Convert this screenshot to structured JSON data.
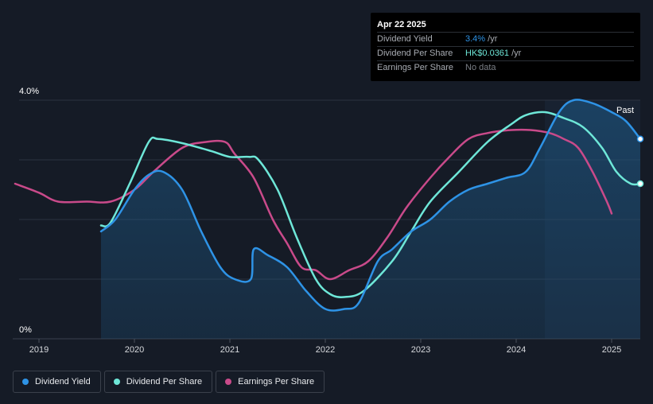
{
  "tooltip": {
    "date": "Apr 22 2025",
    "rows": [
      {
        "label": "Dividend Yield",
        "value": "3.4%",
        "unit": " /yr",
        "color": "#2e93e6"
      },
      {
        "label": "Dividend Per Share",
        "value": "HK$0.0361",
        "unit": " /yr",
        "color": "#6ee7d8"
      },
      {
        "label": "Earnings Per Share",
        "value": "No data",
        "unit": "",
        "color": "#7b7f86"
      }
    ]
  },
  "legend": [
    {
      "label": "Dividend Yield",
      "color": "#2e93e6"
    },
    {
      "label": "Dividend Per Share",
      "color": "#6ee7d8"
    },
    {
      "label": "Earnings Per Share",
      "color": "#c94a8a"
    }
  ],
  "chart_data": {
    "type": "line",
    "y_axis": {
      "min": 0,
      "max": 4.0,
      "unit": "%",
      "tick_labels": [
        "4.0%",
        "0%"
      ]
    },
    "x_axis": {
      "min": 2018.75,
      "max": 2025.3,
      "ticks": [
        2019,
        2020,
        2021,
        2022,
        2023,
        2024,
        2025
      ]
    },
    "past_label": "Past",
    "forecast_start": 2024.3,
    "grid": true,
    "series": [
      {
        "name": "Dividend Yield",
        "color": "#2e93e6",
        "fill": true,
        "points": [
          [
            2019.65,
            1.8
          ],
          [
            2019.8,
            2.0
          ],
          [
            2020.0,
            2.5
          ],
          [
            2020.15,
            2.75
          ],
          [
            2020.3,
            2.8
          ],
          [
            2020.5,
            2.5
          ],
          [
            2020.7,
            1.8
          ],
          [
            2020.9,
            1.2
          ],
          [
            2021.05,
            1.0
          ],
          [
            2021.22,
            1.0
          ],
          [
            2021.25,
            1.5
          ],
          [
            2021.4,
            1.4
          ],
          [
            2021.6,
            1.2
          ],
          [
            2021.8,
            0.8
          ],
          [
            2022.0,
            0.5
          ],
          [
            2022.2,
            0.5
          ],
          [
            2022.35,
            0.6
          ],
          [
            2022.55,
            1.3
          ],
          [
            2022.7,
            1.5
          ],
          [
            2022.9,
            1.8
          ],
          [
            2023.1,
            2.0
          ],
          [
            2023.3,
            2.3
          ],
          [
            2023.5,
            2.5
          ],
          [
            2023.7,
            2.6
          ],
          [
            2023.9,
            2.7
          ],
          [
            2024.1,
            2.8
          ],
          [
            2024.25,
            3.2
          ],
          [
            2024.45,
            3.8
          ],
          [
            2024.6,
            4.0
          ],
          [
            2024.8,
            3.95
          ],
          [
            2025.0,
            3.8
          ],
          [
            2025.15,
            3.65
          ],
          [
            2025.3,
            3.35
          ]
        ]
      },
      {
        "name": "Dividend Per Share",
        "color": "#6ee7d8",
        "fill": false,
        "points": [
          [
            2019.65,
            1.9
          ],
          [
            2019.75,
            1.95
          ],
          [
            2019.95,
            2.6
          ],
          [
            2020.15,
            3.3
          ],
          [
            2020.25,
            3.35
          ],
          [
            2020.5,
            3.28
          ],
          [
            2020.8,
            3.15
          ],
          [
            2021.0,
            3.05
          ],
          [
            2021.2,
            3.05
          ],
          [
            2021.3,
            3.0
          ],
          [
            2021.5,
            2.5
          ],
          [
            2021.7,
            1.7
          ],
          [
            2021.9,
            1.0
          ],
          [
            2022.05,
            0.75
          ],
          [
            2022.2,
            0.7
          ],
          [
            2022.4,
            0.8
          ],
          [
            2022.7,
            1.3
          ],
          [
            2022.9,
            1.8
          ],
          [
            2023.1,
            2.3
          ],
          [
            2023.4,
            2.8
          ],
          [
            2023.7,
            3.3
          ],
          [
            2023.95,
            3.6
          ],
          [
            2024.1,
            3.75
          ],
          [
            2024.3,
            3.8
          ],
          [
            2024.5,
            3.7
          ],
          [
            2024.7,
            3.55
          ],
          [
            2024.9,
            3.2
          ],
          [
            2025.05,
            2.8
          ],
          [
            2025.2,
            2.6
          ],
          [
            2025.3,
            2.6
          ]
        ]
      },
      {
        "name": "Earnings Per Share",
        "color": "#c94a8a",
        "fill": false,
        "points": [
          [
            2018.75,
            2.6
          ],
          [
            2019.0,
            2.45
          ],
          [
            2019.2,
            2.3
          ],
          [
            2019.5,
            2.3
          ],
          [
            2019.75,
            2.3
          ],
          [
            2020.0,
            2.5
          ],
          [
            2020.2,
            2.8
          ],
          [
            2020.5,
            3.2
          ],
          [
            2020.75,
            3.3
          ],
          [
            2020.95,
            3.3
          ],
          [
            2021.05,
            3.1
          ],
          [
            2021.25,
            2.7
          ],
          [
            2021.45,
            2.0
          ],
          [
            2021.6,
            1.6
          ],
          [
            2021.75,
            1.2
          ],
          [
            2021.9,
            1.15
          ],
          [
            2022.05,
            1.0
          ],
          [
            2022.25,
            1.15
          ],
          [
            2022.45,
            1.3
          ],
          [
            2022.65,
            1.7
          ],
          [
            2022.85,
            2.2
          ],
          [
            2023.1,
            2.7
          ],
          [
            2023.3,
            3.05
          ],
          [
            2023.5,
            3.35
          ],
          [
            2023.7,
            3.45
          ],
          [
            2023.95,
            3.5
          ],
          [
            2024.15,
            3.5
          ],
          [
            2024.35,
            3.45
          ],
          [
            2024.5,
            3.35
          ],
          [
            2024.65,
            3.2
          ],
          [
            2024.8,
            2.8
          ],
          [
            2024.95,
            2.3
          ],
          [
            2025.0,
            2.1
          ]
        ]
      }
    ]
  }
}
